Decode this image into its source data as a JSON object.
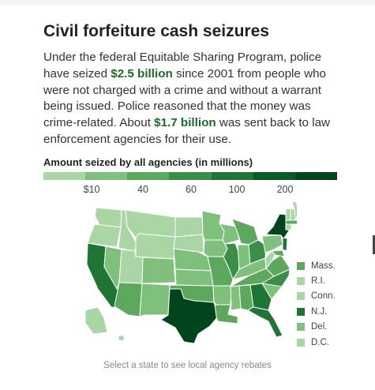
{
  "header": {
    "title": "Civil forfeiture cash seizures",
    "intro": {
      "part1": "Under the federal Equitable Sharing Program, police have seized ",
      "amount_seized": "$2.5 billion",
      "part2": " since 2001 from people who were not charged with a crime and without a warrant being issued. Police reasoned that the money was crime-related. About ",
      "amount_returned": "$1.7 billion",
      "part3": " was sent back to law enforcement agencies for their use."
    }
  },
  "legend": {
    "title": "Amount seized by all agencies (in millions)",
    "colors": [
      "#a9d6a4",
      "#7fc17c",
      "#5ca95e",
      "#3a8f48",
      "#1e7535",
      "#0b5a27",
      "#02441c"
    ],
    "ticks": [
      "$10",
      "40",
      "60",
      "100",
      "200"
    ]
  },
  "map": {
    "states": [
      {
        "id": "WA",
        "fill": "#a9d6a4"
      },
      {
        "id": "OR",
        "fill": "#a9d6a4"
      },
      {
        "id": "CA",
        "fill": "#1e7535"
      },
      {
        "id": "NV",
        "fill": "#7fc17c"
      },
      {
        "id": "ID",
        "fill": "#a9d6a4"
      },
      {
        "id": "MT",
        "fill": "#a9d6a4"
      },
      {
        "id": "WY",
        "fill": "#a9d6a4"
      },
      {
        "id": "UT",
        "fill": "#a9d6a4"
      },
      {
        "id": "AZ",
        "fill": "#5ca95e"
      },
      {
        "id": "CO",
        "fill": "#7fc17c"
      },
      {
        "id": "NM",
        "fill": "#7fc17c"
      },
      {
        "id": "ND",
        "fill": "#a9d6a4"
      },
      {
        "id": "SD",
        "fill": "#a9d6a4"
      },
      {
        "id": "NE",
        "fill": "#7fc17c"
      },
      {
        "id": "KS",
        "fill": "#7fc17c"
      },
      {
        "id": "OK",
        "fill": "#5ca95e"
      },
      {
        "id": "TX",
        "fill": "#02441c"
      },
      {
        "id": "MN",
        "fill": "#7fc17c"
      },
      {
        "id": "IA",
        "fill": "#7fc17c"
      },
      {
        "id": "MO",
        "fill": "#5ca95e"
      },
      {
        "id": "AR",
        "fill": "#7fc17c"
      },
      {
        "id": "LA",
        "fill": "#5ca95e"
      },
      {
        "id": "WI",
        "fill": "#7fc17c"
      },
      {
        "id": "IL",
        "fill": "#3a8f48"
      },
      {
        "id": "MI",
        "fill": "#5ca95e"
      },
      {
        "id": "IN",
        "fill": "#7fc17c"
      },
      {
        "id": "OH",
        "fill": "#3a8f48"
      },
      {
        "id": "KY",
        "fill": "#7fc17c"
      },
      {
        "id": "TN",
        "fill": "#5ca95e"
      },
      {
        "id": "MS",
        "fill": "#7fc17c"
      },
      {
        "id": "AL",
        "fill": "#5ca95e"
      },
      {
        "id": "GA",
        "fill": "#1e7535"
      },
      {
        "id": "FL",
        "fill": "#1e7535"
      },
      {
        "id": "SC",
        "fill": "#7fc17c"
      },
      {
        "id": "NC",
        "fill": "#3a8f48"
      },
      {
        "id": "VA",
        "fill": "#5ca95e"
      },
      {
        "id": "WV",
        "fill": "#a9d6a4"
      },
      {
        "id": "PA",
        "fill": "#7fc17c"
      },
      {
        "id": "NY",
        "fill": "#02441c"
      },
      {
        "id": "NJ",
        "fill": "#1e7535"
      },
      {
        "id": "MD",
        "fill": "#5ca95e"
      },
      {
        "id": "VT",
        "fill": "#a9d6a4"
      },
      {
        "id": "NH",
        "fill": "#a9d6a4"
      },
      {
        "id": "ME",
        "fill": "#a9d6a4"
      },
      {
        "id": "MA",
        "fill": "#5ca95e"
      },
      {
        "id": "CT",
        "fill": "#a9d6a4"
      },
      {
        "id": "AK",
        "fill": "#a9d6a4"
      },
      {
        "id": "HI",
        "fill": "#a9d6a4"
      }
    ],
    "small_states": [
      {
        "label": "Mass.",
        "fill": "#5ca95e"
      },
      {
        "label": "R.I.",
        "fill": "#a9d6a4"
      },
      {
        "label": "Conn.",
        "fill": "#a9d6a4"
      },
      {
        "label": "N.J.",
        "fill": "#1e7535"
      },
      {
        "label": "Del.",
        "fill": "#7fc17c"
      },
      {
        "label": "D.C.",
        "fill": "#a9d6a4"
      }
    ]
  },
  "footer": {
    "note": "Select a state to see local agency rebates"
  }
}
